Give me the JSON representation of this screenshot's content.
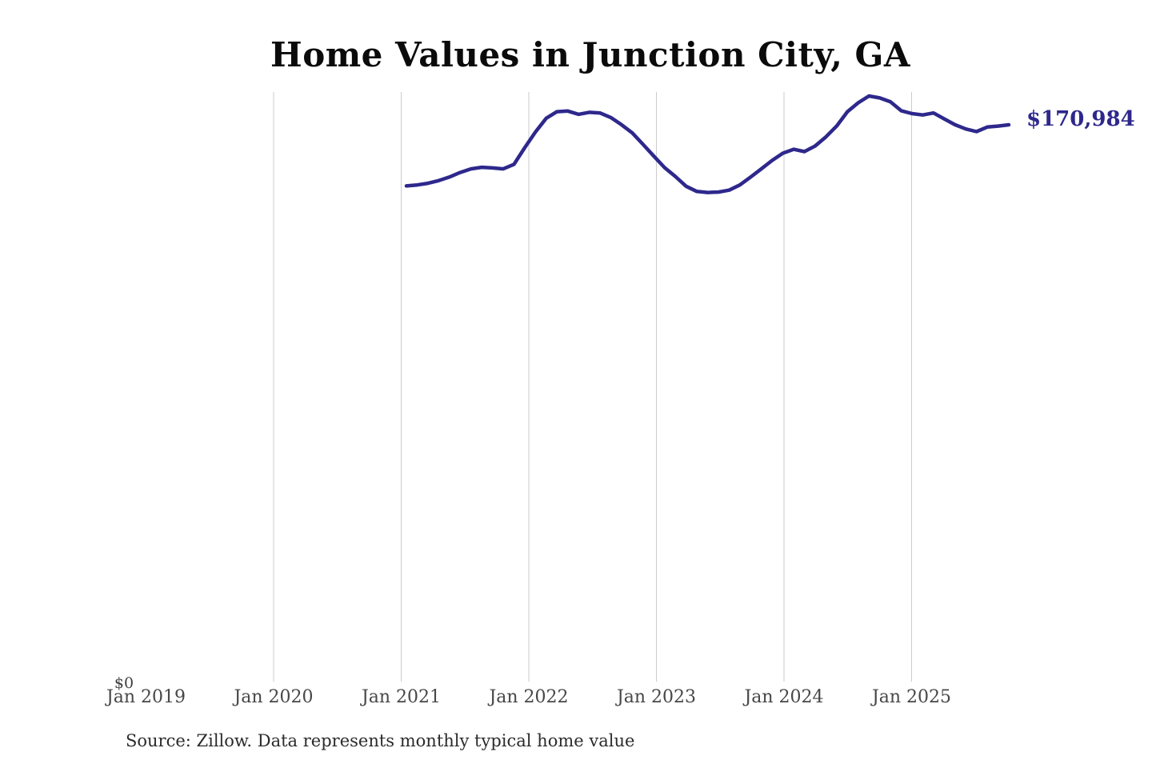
{
  "title": "Home Values in Junction City, GA",
  "end_label": "$170,984",
  "y_axis": {
    "zero_label": "$0"
  },
  "source": "Source: Zillow. Data represents monthly typical home value",
  "colors": {
    "line": "#2e288c",
    "end_label": "#2e288c",
    "gridline": "#cbcbcb",
    "title": "#0b0b0b",
    "tick_label": "#474747",
    "zero_label": "#3d3d3d",
    "source": "#2b2b2b",
    "background": "#ffffff"
  },
  "chart_data": {
    "type": "line",
    "title": "Home Values in Junction City, GA",
    "unit": "USD",
    "frequency": "monthly",
    "x_start": "2021-01",
    "x_end": "2025-09",
    "end_value": 170984,
    "ylim": [
      0,
      190000
    ],
    "grid": "vertical-yearly",
    "legend": "none",
    "x_ticks": [
      {
        "label": "Jan 2019",
        "gridline": false
      },
      {
        "label": "Jan 2020",
        "gridline": true
      },
      {
        "label": "Jan 2021",
        "gridline": true
      },
      {
        "label": "Jan 2022",
        "gridline": true
      },
      {
        "label": "Jan 2023",
        "gridline": true
      },
      {
        "label": "Jan 2024",
        "gridline": true
      },
      {
        "label": "Jan 2025",
        "gridline": true
      }
    ],
    "series": [
      {
        "name": "Monthly typical home value",
        "values": [
          152300,
          152600,
          153100,
          153900,
          155000,
          156400,
          157500,
          158000,
          157800,
          157500,
          158900,
          164000,
          168800,
          173000,
          175000,
          175200,
          174200,
          174800,
          174600,
          173200,
          171000,
          168500,
          165000,
          161400,
          157900,
          155200,
          152200,
          150600,
          150300,
          150400,
          151000,
          152600,
          155000,
          157500,
          160100,
          162300,
          163500,
          162800,
          164500,
          167300,
          170600,
          175000,
          177700,
          179800,
          179200,
          178000,
          175300,
          174400,
          174000,
          174600,
          172800,
          171000,
          169700,
          168900,
          170300,
          170600,
          170984
        ]
      }
    ]
  }
}
